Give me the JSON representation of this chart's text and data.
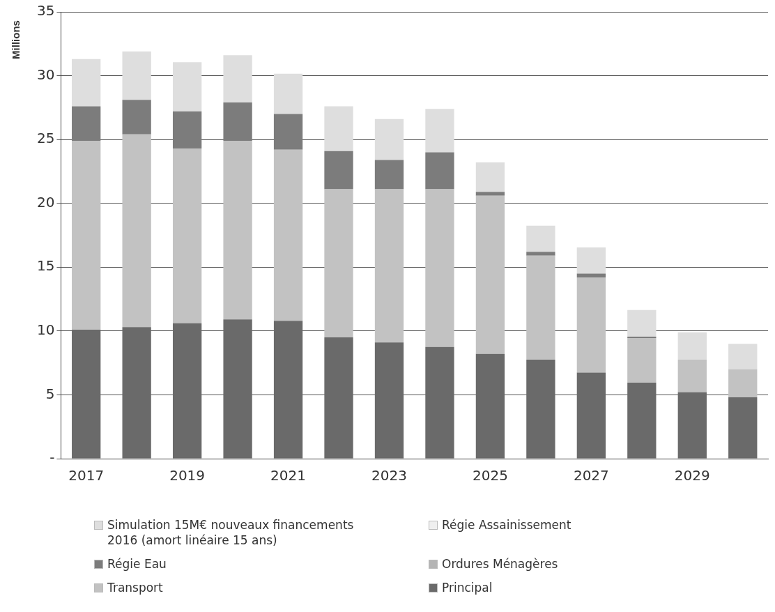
{
  "chart_data": {
    "type": "bar",
    "stacked": true,
    "ylabel": "Millions",
    "categories": [
      "2017",
      null,
      "2019",
      null,
      "2021",
      null,
      "2023",
      null,
      "2025",
      null,
      "2027",
      null,
      "2029",
      null
    ],
    "series": [
      {
        "name": "Principal",
        "color": "#6a6a6a",
        "values": [
          10.1,
          10.3,
          10.6,
          10.9,
          10.8,
          9.5,
          9.1,
          8.75,
          8.2,
          7.75,
          6.75,
          5.95,
          5.2,
          4.8
        ]
      },
      {
        "name": "Transport",
        "color": "#c2c2c2",
        "values": [
          14.8,
          15.1,
          13.7,
          14.0,
          13.4,
          11.6,
          12.0,
          12.35,
          12.4,
          8.15,
          7.45,
          3.5,
          2.55,
          2.2
        ]
      },
      {
        "name": "Ordures Ménagères",
        "color": "#b4b4b4",
        "values": [
          null,
          null,
          null,
          null,
          null,
          null,
          null,
          null,
          null,
          null,
          null,
          null,
          null,
          null
        ]
      },
      {
        "name": "Régie Eau",
        "color": "#7c7c7c",
        "values": [
          2.7,
          2.7,
          2.9,
          3.0,
          2.8,
          3.0,
          2.3,
          2.9,
          0.3,
          0.3,
          0.3,
          0.1,
          0,
          0
        ]
      },
      {
        "name": "Régie Assainissement",
        "color": "#efefef",
        "values": [
          null,
          null,
          null,
          null,
          null,
          null,
          null,
          null,
          null,
          null,
          null,
          null,
          null,
          null
        ]
      },
      {
        "name": "Simulation 15M€ nouveaux financements 2016 (amort linéaire 15 ans)",
        "color": "#dedede",
        "values": [
          3.7,
          3.8,
          3.85,
          3.7,
          3.15,
          3.5,
          3.2,
          3.4,
          2.3,
          2.05,
          2.05,
          2.1,
          2.15,
          2.0
        ]
      }
    ],
    "ylim": [
      0,
      35
    ],
    "yticks": [
      {
        "value": 0,
        "label": "-"
      },
      5,
      10,
      15,
      20,
      25,
      30,
      35
    ],
    "grid": "y",
    "legend": "bottom"
  }
}
